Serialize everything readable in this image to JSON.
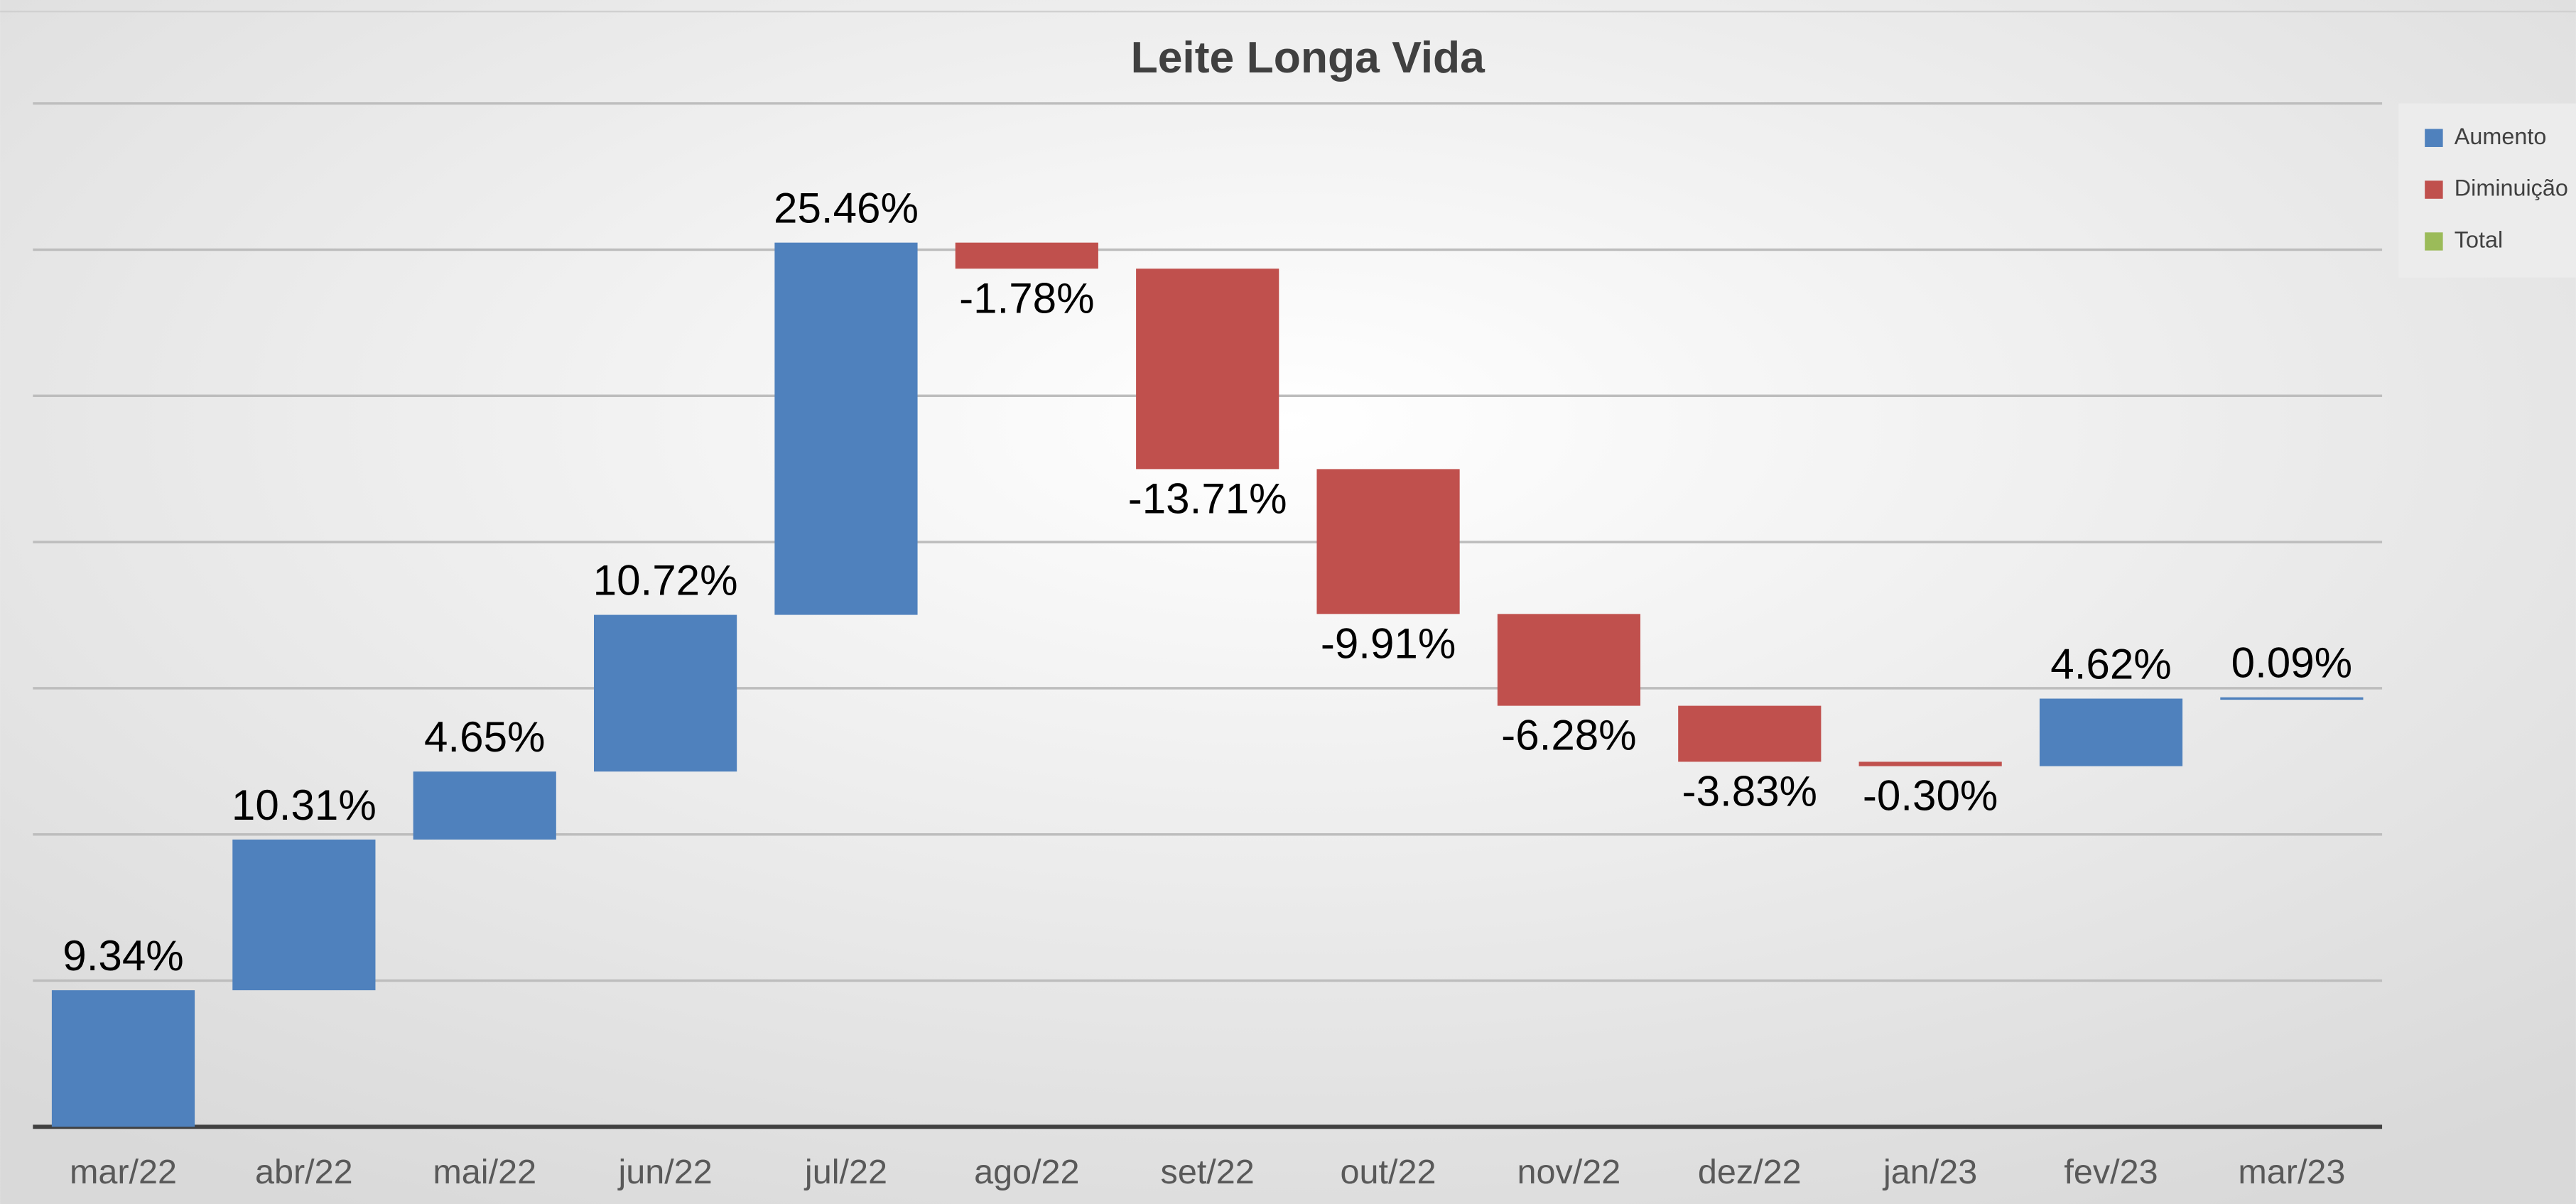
{
  "chart_data": {
    "type": "waterfall",
    "title": "Leite Longa Vida",
    "categories": [
      "mar/22",
      "abr/22",
      "mai/22",
      "jun/22",
      "jul/22",
      "ago/22",
      "set/22",
      "out/22",
      "nov/22",
      "dez/22",
      "jan/23",
      "fev/23",
      "mar/23"
    ],
    "values": [
      9.34,
      10.31,
      4.65,
      10.72,
      25.46,
      -1.78,
      -13.71,
      -9.91,
      -6.28,
      -3.83,
      -0.3,
      4.62,
      0.09
    ],
    "value_labels": [
      "9.34%",
      "10.31%",
      "4.65%",
      "10.72%",
      "25.46%",
      "-1.78%",
      "-13.71%",
      "-9.91%",
      "-6.28%",
      "-3.83%",
      "-0.30%",
      "4.62%",
      "0.09%"
    ],
    "legend_entries": [
      {
        "name": "Aumento",
        "color": "#4f81bd"
      },
      {
        "name": "Diminuição",
        "color": "#c0504d"
      },
      {
        "name": "Total",
        "color": "#9bbb59"
      }
    ],
    "legend": "right",
    "ylim": [
      0,
      70
    ],
    "yticks": [
      0,
      10,
      20,
      30,
      40,
      50,
      60,
      70
    ],
    "grid": true
  }
}
